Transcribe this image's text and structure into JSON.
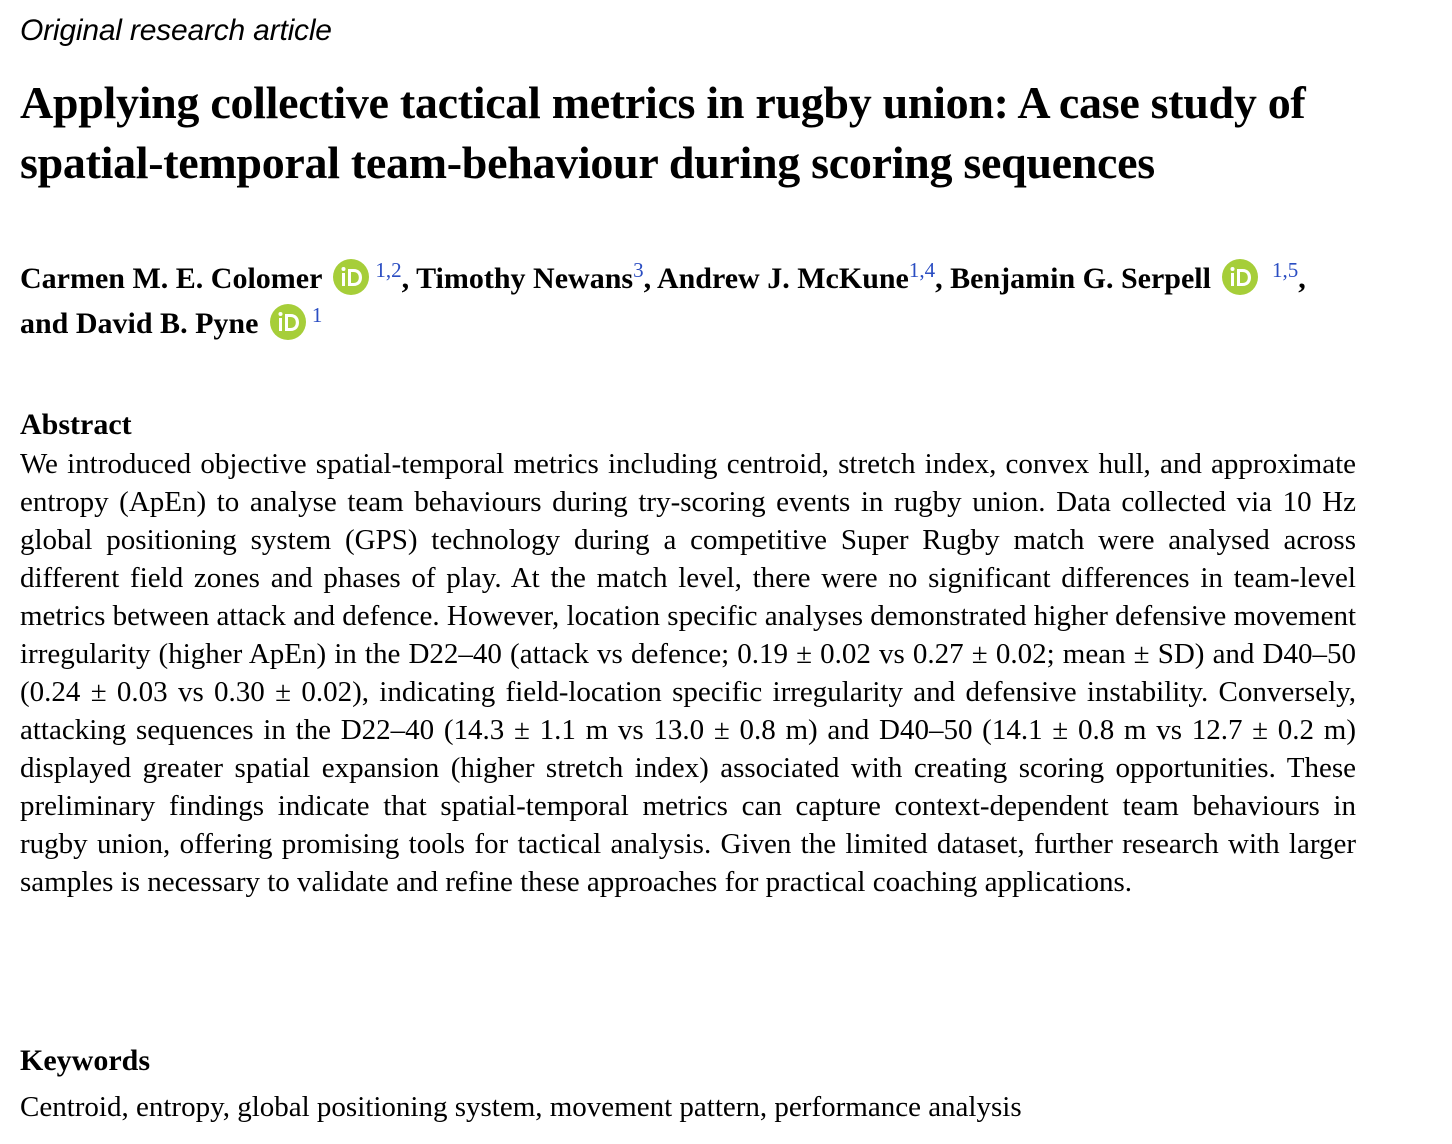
{
  "article_type": "Original research article",
  "title": "Applying collective tactical metrics in rugby union: A case study of spatial-temporal team-behaviour during scoring sequences",
  "authors": [
    {
      "name": "Carmen M. E. Colomer",
      "orcid_icon": "orcid-icon",
      "affiliations": "1,2",
      "sep": ", "
    },
    {
      "name": "Timothy Newans",
      "affiliations": "3",
      "sep": ", "
    },
    {
      "name": "Andrew J. McKune",
      "affiliations": "1,4",
      "sep": ", "
    },
    {
      "name": "Benjamin G. Serpell",
      "orcid_icon": "orcid-icon",
      "affiliations": "1,5",
      "sep": ", and "
    },
    {
      "name": "David B. Pyne",
      "orcid_icon": "orcid-icon",
      "affiliations": "1",
      "sep": ""
    }
  ],
  "abstract": {
    "heading": "Abstract",
    "text": "We introduced objective spatial-temporal metrics including centroid, stretch index, convex hull, and approximate entropy (ApEn) to analyse team behaviours during try-scoring events in rugby union. Data collected via 10 Hz global positioning system (GPS) technology during a competitive Super Rugby match were analysed across different field zones and phases of play. At the match level, there were no significant differences in team-level metrics between attack and defence. However, location specific analyses demonstrated higher defensive movement irregularity (higher ApEn) in the D22–40 (attack vs defence; 0.19 ± 0.02 vs 0.27 ± 0.02; mean ± SD) and D40–50 (0.24 ± 0.03 vs 0.30 ± 0.02), indicating field-location specific irregularity and defensive instability. Conversely, attacking sequences in the D22–40 (14.3 ± 1.1 m vs 13.0 ± 0.8 m) and D40–50 (14.1 ± 0.8 m vs 12.7 ± 0.2 m) displayed greater spatial expansion (higher stretch index) associated with creating scoring opportunities. These preliminary findings indicate that spatial-temporal metrics can capture context-dependent team behaviours in rugby union, offering promising tools for tactical analysis. Given the limited dataset, further research with larger samples is necessary to validate and refine these approaches for practical coaching applications."
  },
  "keywords": {
    "heading": "Keywords",
    "text": "Centroid, entropy, global positioning system, movement pattern, performance analysis"
  },
  "colors": {
    "orcid_green": "#a6ce39",
    "affiliation_blue": "#2a4dc2",
    "text": "#000000"
  }
}
